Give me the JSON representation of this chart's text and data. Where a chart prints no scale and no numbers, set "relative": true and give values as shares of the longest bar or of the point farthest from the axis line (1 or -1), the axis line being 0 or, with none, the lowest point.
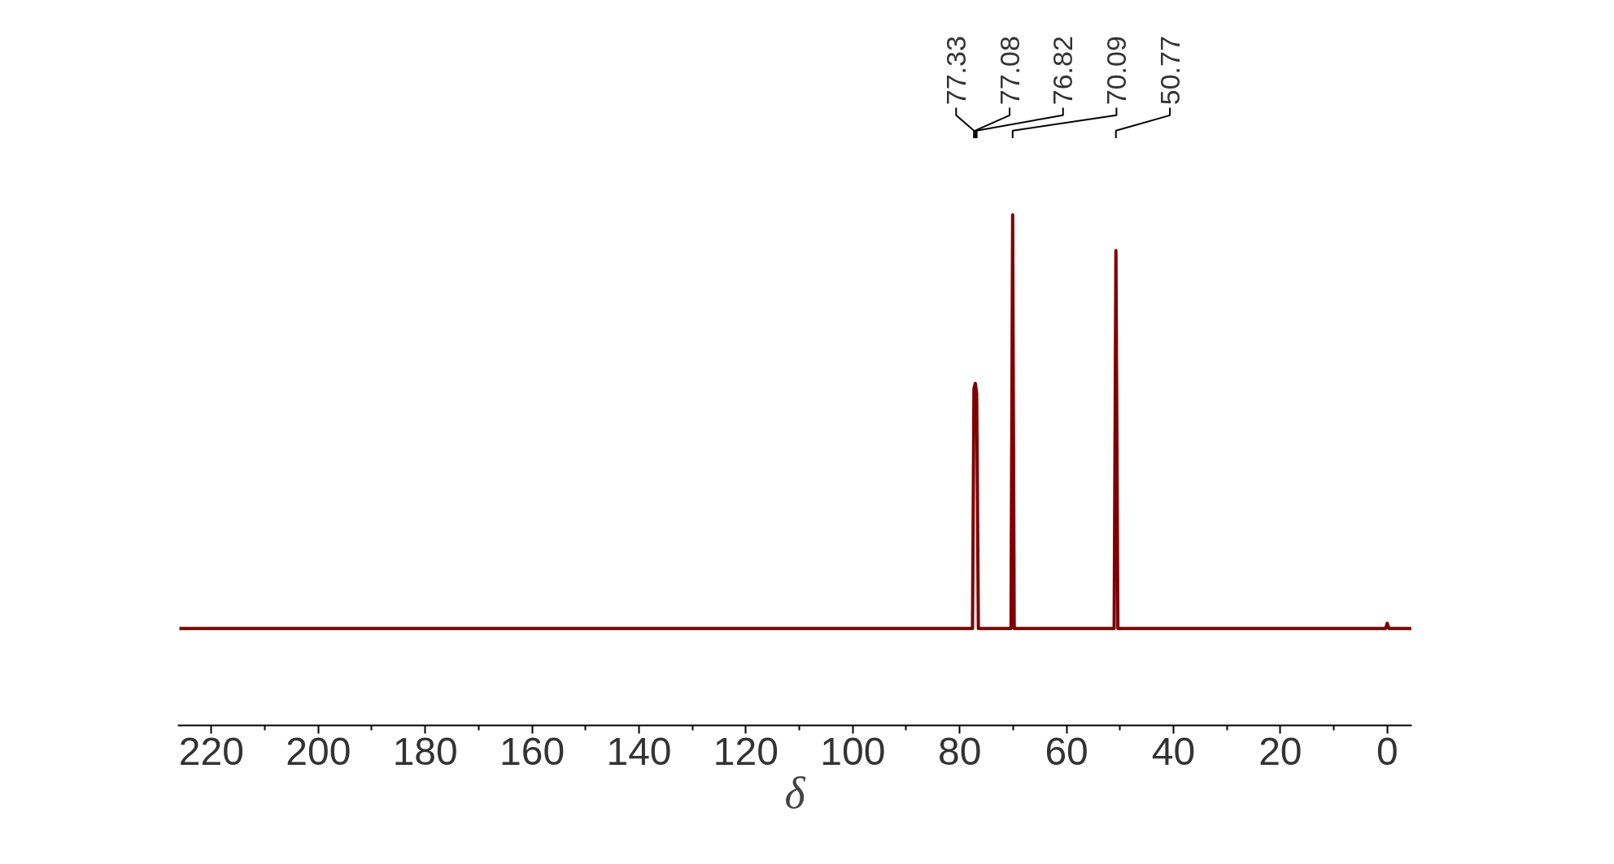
{
  "chart_data": {
    "type": "line",
    "relative": true,
    "xlabel": "δ",
    "tick_labels": "x",
    "grid": false,
    "xlim": [
      226.3,
      -4.6
    ],
    "xticks": [
      220,
      {
        "value": 210,
        "label": null
      },
      200,
      {
        "value": 190,
        "label": null
      },
      180,
      {
        "value": 170,
        "label": null
      },
      160,
      {
        "value": 150,
        "label": null
      },
      140,
      {
        "value": 130,
        "label": null
      },
      120,
      {
        "value": 110,
        "label": null
      },
      100,
      {
        "value": 90,
        "label": null
      },
      80,
      {
        "value": 70,
        "label": null
      },
      60,
      {
        "value": 50,
        "label": null
      },
      40,
      {
        "value": 30,
        "label": null
      },
      20,
      {
        "value": 10,
        "label": null
      },
      0
    ],
    "series": [
      {
        "color": "#800000",
        "x": [
          226.0,
          77.6,
          77.33,
          77.08,
          76.82,
          76.5,
          70.4,
          70.09,
          69.8,
          51.1,
          50.77,
          50.4,
          0.3,
          0.0,
          -0.3,
          -4.5
        ],
        "values": [
          0.19,
          0.19,
          0.66,
          0.67,
          0.65,
          0.19,
          0.19,
          1.0,
          0.19,
          0.19,
          0.93,
          0.19,
          0.19,
          0.2,
          0.19,
          0.19
        ]
      }
    ],
    "annotations": [
      {
        "text": "77.33",
        "x": 77.33
      },
      {
        "text": "77.08",
        "x": 77.08
      },
      {
        "text": "76.82",
        "x": 76.82
      },
      {
        "text": "70.09",
        "x": 70.09
      },
      {
        "text": "50.77",
        "x": 50.77
      }
    ]
  }
}
